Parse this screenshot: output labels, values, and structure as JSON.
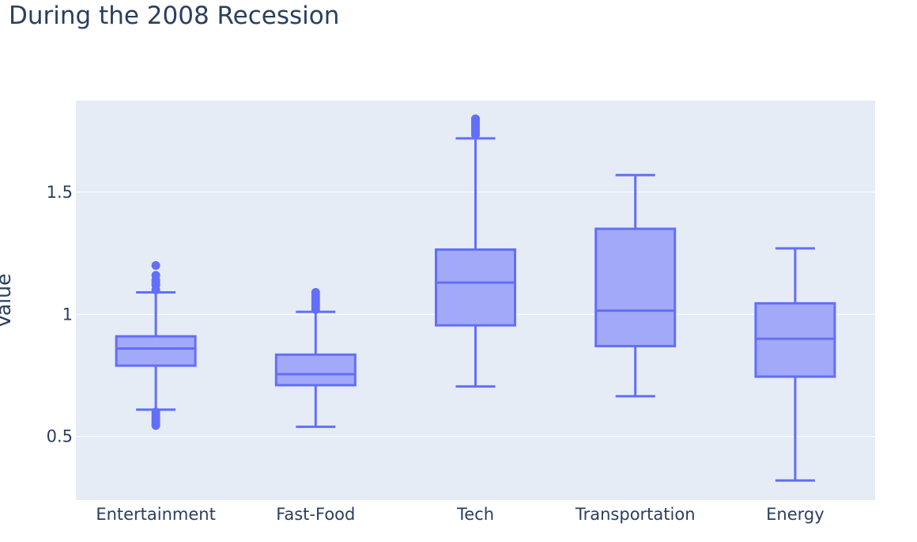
{
  "chart_data": {
    "type": "box",
    "title": "During the 2008 Recession",
    "xlabel": "",
    "ylabel": "Value",
    "ylim": [
      0.24,
      1.875
    ],
    "yticks": [
      0.5,
      1,
      1.5
    ],
    "ytick_labels": [
      "0.5",
      "1",
      "1.5"
    ],
    "grid": true,
    "colors": {
      "box": "#636efa",
      "box_fill": "#a2a9f8",
      "plot_bg": "#e5ecf6",
      "text": "#2a3f5f"
    },
    "categories": [
      "Entertainment",
      "Fast-Food",
      "Tech",
      "Transportation",
      "Energy"
    ],
    "boxes": [
      {
        "category": "Entertainment",
        "lower_whisker": 0.61,
        "q1": 0.79,
        "median": 0.86,
        "q3": 0.91,
        "upper_whisker": 1.09,
        "outliers": [
          1.1,
          1.12,
          1.13,
          1.14,
          1.16,
          1.2,
          0.6,
          0.59,
          0.58,
          0.57,
          0.56,
          0.55,
          0.545
        ]
      },
      {
        "category": "Fast-Food",
        "lower_whisker": 0.54,
        "q1": 0.71,
        "median": 0.755,
        "q3": 0.835,
        "upper_whisker": 1.01,
        "outliers": [
          1.02,
          1.03,
          1.04,
          1.05,
          1.06,
          1.07,
          1.08,
          1.09
        ]
      },
      {
        "category": "Tech",
        "lower_whisker": 0.705,
        "q1": 0.955,
        "median": 1.13,
        "q3": 1.265,
        "upper_whisker": 1.72,
        "outliers": [
          1.735,
          1.745,
          1.755,
          1.765,
          1.775,
          1.785,
          1.795,
          1.8
        ]
      },
      {
        "category": "Transportation",
        "lower_whisker": 0.665,
        "q1": 0.87,
        "median": 1.015,
        "q3": 1.35,
        "upper_whisker": 1.57,
        "outliers": []
      },
      {
        "category": "Energy",
        "lower_whisker": 0.32,
        "q1": 0.745,
        "median": 0.9,
        "q3": 1.045,
        "upper_whisker": 1.27,
        "outliers": []
      }
    ]
  }
}
